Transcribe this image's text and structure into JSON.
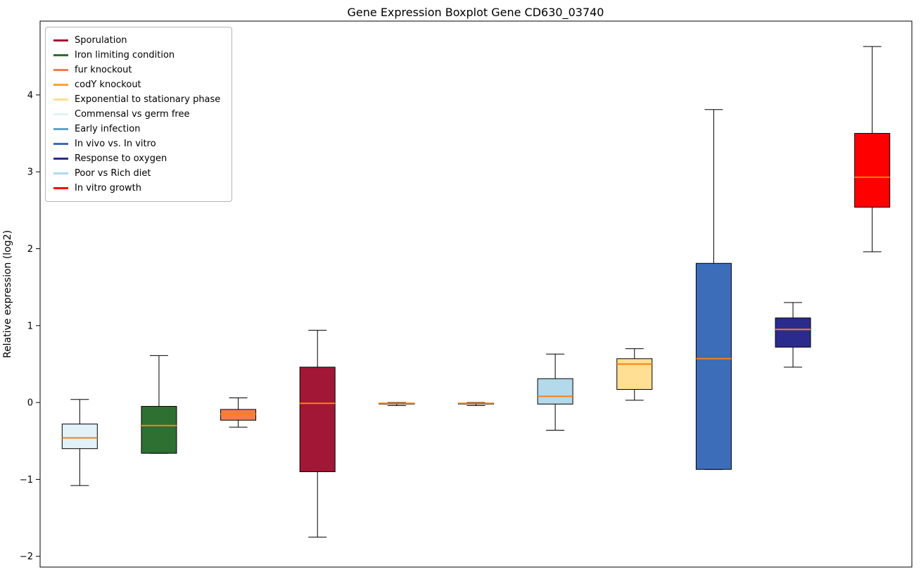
{
  "title": "Gene Expression Boxplot Gene CD630_03740",
  "chart_data": {
    "type": "boxplot",
    "title": "Gene Expression Boxplot Gene CD630_03740",
    "xlabel": "",
    "ylabel": "Relative expression (log2)",
    "ylim": [
      -2.14,
      4.96
    ],
    "yticks": [
      -2,
      -1,
      0,
      1,
      2,
      3,
      4
    ],
    "grid": false,
    "legend_position": "upper left",
    "median_color": "#ff7f0e",
    "whisker_color": "#000000",
    "box_edge_color": "#000000",
    "legend": [
      {
        "label": "Sporulation",
        "color": "#a21636"
      },
      {
        "label": "Iron limiting condition",
        "color": "#2e7031"
      },
      {
        "label": "fur knockout",
        "color": "#f87a4e"
      },
      {
        "label": "codY knockout",
        "color": "#ffa234"
      },
      {
        "label": "Exponential to stationary phase",
        "color": "#ffdf94"
      },
      {
        "label": "Commensal vs germ free",
        "color": "#e2f2f8"
      },
      {
        "label": "Early infection",
        "color": "#66a2c4"
      },
      {
        "label": "In vivo vs. In vitro",
        "color": "#3c6db8"
      },
      {
        "label": "Response to oxygen",
        "color": "#2b2b8e"
      },
      {
        "label": "Poor vs Rich diet",
        "color": "#b3d9ea"
      },
      {
        "label": "In vitro growth",
        "color": "#ff0000"
      }
    ],
    "series": [
      {
        "name": "Commensal vs germ free",
        "color": "#e2f2f8",
        "whislo": -1.08,
        "q1": -0.6,
        "med": -0.46,
        "q3": -0.28,
        "whishi": 0.04
      },
      {
        "name": "Iron limiting condition",
        "color": "#2e7031",
        "whislo": -0.66,
        "q1": -0.66,
        "med": -0.3,
        "q3": -0.05,
        "whishi": 0.61
      },
      {
        "name": "fur knockout",
        "color": "#f87a4e",
        "whislo": -0.32,
        "q1": -0.23,
        "med": -0.15,
        "q3": -0.09,
        "whishi": 0.06
      },
      {
        "name": "Sporulation",
        "color": "#a21636",
        "whislo": -1.75,
        "q1": -0.9,
        "med": -0.01,
        "q3": 0.46,
        "whishi": 0.94
      },
      {
        "name": "codY knockout",
        "color": "#ffa234",
        "whislo": -0.04,
        "q1": -0.02,
        "med": -0.01,
        "q3": -0.01,
        "whishi": 0.0
      },
      {
        "name": "Early infection",
        "color": "#66a2c4",
        "whislo": -0.04,
        "q1": -0.02,
        "med": -0.01,
        "q3": -0.01,
        "whishi": 0.0
      },
      {
        "name": "Poor vs Rich diet",
        "color": "#b3d9ea",
        "whislo": -0.36,
        "q1": -0.02,
        "med": 0.08,
        "q3": 0.31,
        "whishi": 0.63
      },
      {
        "name": "Exponential to stationary phase",
        "color": "#ffdf94",
        "whislo": 0.03,
        "q1": 0.17,
        "med": 0.5,
        "q3": 0.57,
        "whishi": 0.7
      },
      {
        "name": "In vivo vs. In vitro",
        "color": "#3c6db8",
        "whislo": -0.87,
        "q1": -0.87,
        "med": 0.57,
        "q3": 1.81,
        "whishi": 3.81
      },
      {
        "name": "Response to oxygen",
        "color": "#2b2b8e",
        "whislo": 0.46,
        "q1": 0.72,
        "med": 0.95,
        "q3": 1.1,
        "whishi": 1.3
      },
      {
        "name": "In vitro growth",
        "color": "#ff0000",
        "whislo": 1.96,
        "q1": 2.54,
        "med": 2.93,
        "q3": 3.5,
        "whishi": 4.63
      }
    ]
  }
}
